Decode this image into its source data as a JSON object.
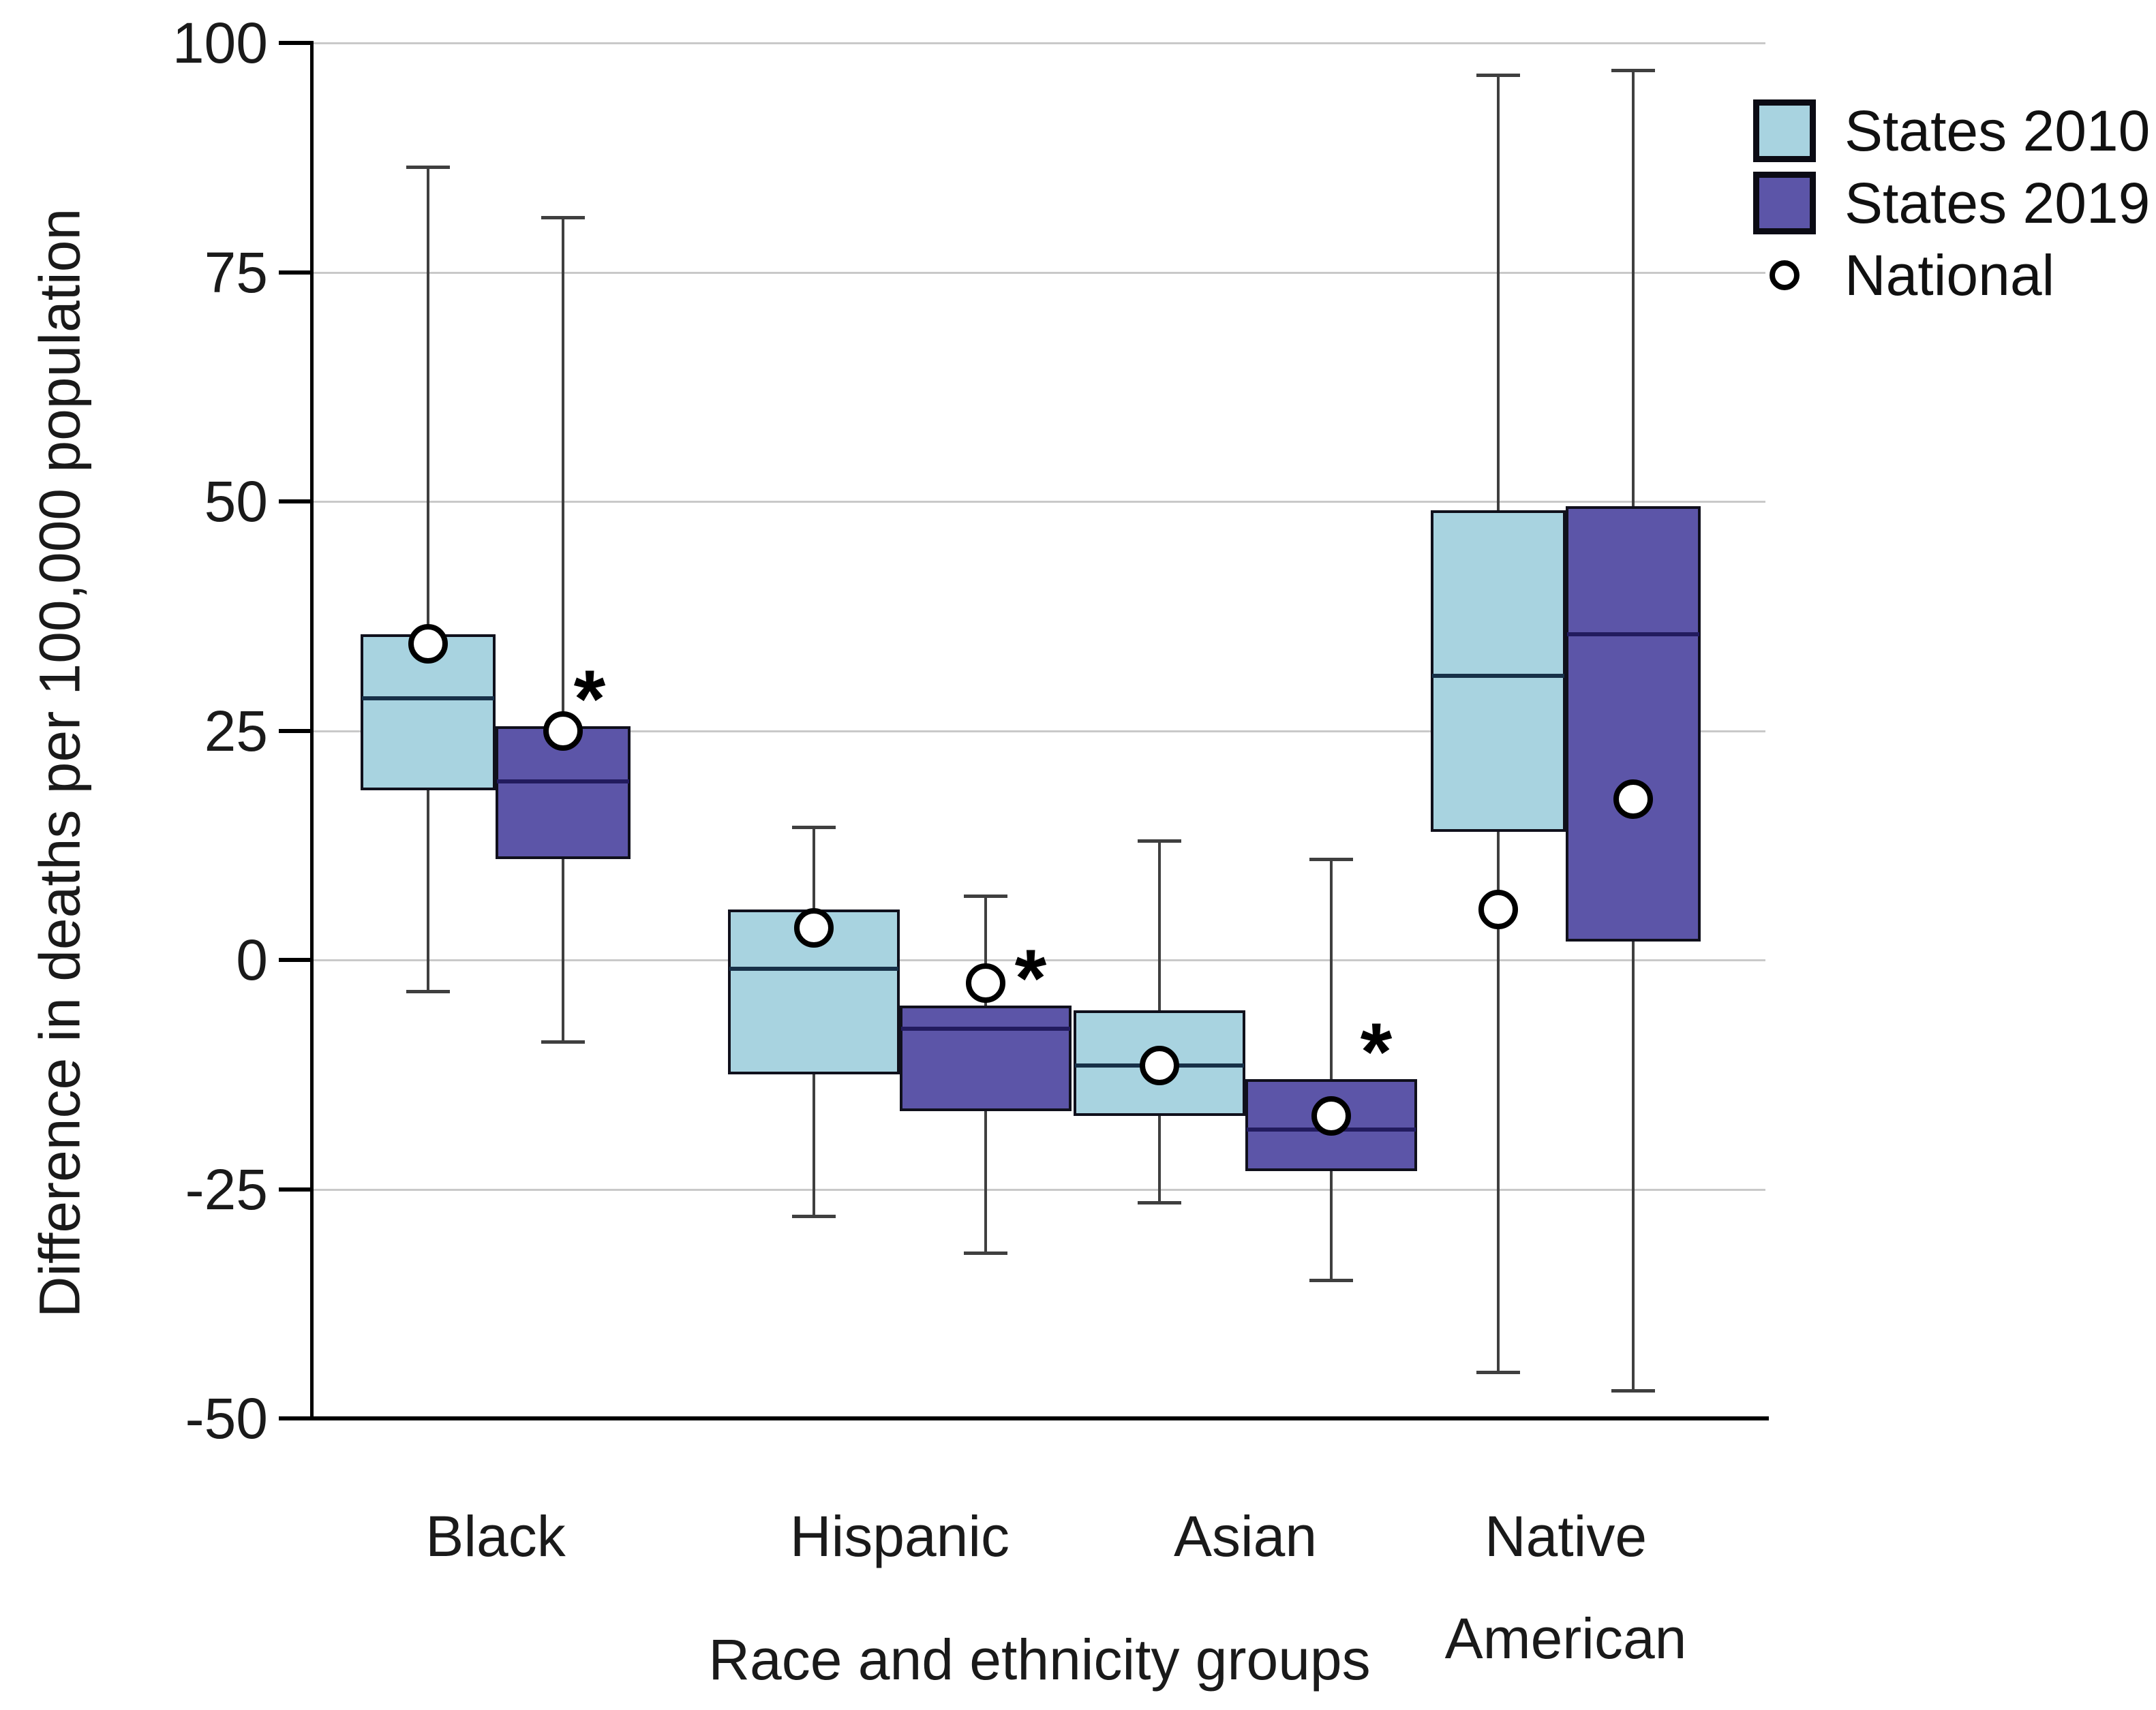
{
  "legend": {
    "items": [
      {
        "label": "States 2010",
        "marker": "box",
        "color": "#A8D3E0"
      },
      {
        "label": "States 2019",
        "marker": "box",
        "color": "#5C55A8"
      },
      {
        "label": "National",
        "marker": "circle",
        "color": "#FFFFFF"
      }
    ]
  },
  "chart_data": {
    "type": "box",
    "title": "",
    "ylabel": "Difference in deaths per 100,000 population",
    "xlabel": "Race and ethnicity groups",
    "categories": [
      "Black",
      "Hispanic",
      "Asian",
      "Native American"
    ],
    "x_tick_labels": [
      "Black",
      "Hispanic",
      "Asian",
      "Native\nAmerican"
    ],
    "ylim": [
      -50,
      100
    ],
    "yticks": [
      100,
      75,
      50,
      25,
      0,
      -25,
      -50
    ],
    "grid": "horizontal gridlines at each y tick",
    "legend_position": "top-right",
    "national_marker": "white circle with black outline at national value",
    "significance_marker": "*",
    "series": [
      {
        "name": "States 2010",
        "color": "#A8D3E0",
        "boxes": [
          {
            "category": "Black",
            "whisker_low": -3.5,
            "q1": 18.5,
            "median": 28.5,
            "q3": 35.5,
            "whisker_high": 86.5,
            "national": 34.5,
            "significant": false
          },
          {
            "category": "Hispanic",
            "whisker_low": -28,
            "q1": -12.5,
            "median": -1,
            "q3": 5.5,
            "whisker_high": 14.5,
            "national": 3.5,
            "significant": false
          },
          {
            "category": "Asian",
            "whisker_low": -26.5,
            "q1": -17,
            "median": -11.5,
            "q3": -5.5,
            "whisker_high": 13,
            "national": -11.5,
            "significant": false
          },
          {
            "category": "Native American",
            "whisker_low": -45,
            "q1": 14,
            "median": 31,
            "q3": 49,
            "whisker_high": 96.5,
            "national": 5.5,
            "significant": false
          }
        ]
      },
      {
        "name": "States 2019",
        "color": "#5C55A8",
        "boxes": [
          {
            "category": "Black",
            "whisker_low": -9,
            "q1": 11,
            "median": 19.5,
            "q3": 25.5,
            "whisker_high": 81,
            "national": 25,
            "significant": true
          },
          {
            "category": "Hispanic",
            "whisker_low": -32,
            "q1": -16.5,
            "median": -7.5,
            "q3": -5,
            "whisker_high": 7,
            "national": -2.5,
            "significant": true
          },
          {
            "category": "Asian",
            "whisker_low": -35,
            "q1": -23,
            "median": -18.5,
            "q3": -13,
            "whisker_high": 11,
            "national": -17,
            "significant": true
          },
          {
            "category": "Native American",
            "whisker_low": -47,
            "q1": 2,
            "median": 35.5,
            "q3": 49.5,
            "whisker_high": 97,
            "national": 17.5,
            "significant": false
          }
        ]
      }
    ]
  },
  "colors": {
    "series_2010_fill": "#A8D3E0",
    "series_2019_fill": "#5C55A8",
    "box_border": "#10101C",
    "median_2010": "#173048",
    "median_2019": "#221B5E",
    "whisker": "#3F3F3F",
    "gridline": "#C9C9C9",
    "axis": "#000000",
    "text": "#1A1A1A"
  }
}
